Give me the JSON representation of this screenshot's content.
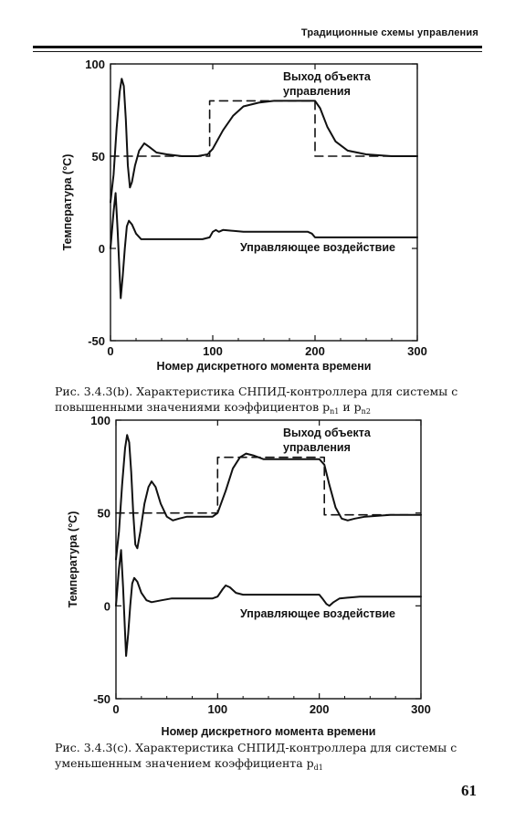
{
  "header": {
    "running_title": "Традиционные схемы управления"
  },
  "page_number": "61",
  "figures": [
    {
      "caption_line1": "Рис. 3.4.3(b). Характеристика СНПИД-контроллера для системы с",
      "caption_line2_prefix": "повышенными значениями коэффициентов p",
      "caption_sub1": "n1",
      "caption_mid": " и p",
      "caption_sub2": "n2",
      "caption_suffix": ""
    },
    {
      "caption_line1": "Рис. 3.4.3(c). Характеристика СНПИД-контроллера для системы с",
      "caption_line2_prefix": "уменьшенным значением коэффициента p",
      "caption_sub1": "d1",
      "caption_mid": "",
      "caption_sub2": "",
      "caption_suffix": ""
    }
  ],
  "chart_data": [
    {
      "type": "line",
      "xlabel": "Номер дискретного момента времени",
      "ylabel": "Температура (°С)",
      "xlim": [
        0,
        300
      ],
      "ylim": [
        -50,
        100
      ],
      "xticks": [
        "0",
        "100",
        "200",
        "300"
      ],
      "yticks": [
        "-50",
        "0",
        "50",
        "100"
      ],
      "grid": false,
      "annotations": [
        "Выход объекта",
        "управления",
        "Управляющее воздействие"
      ],
      "series": [
        {
          "style": "dashed",
          "points": [
            [
              0,
              50
            ],
            [
              97,
              50
            ],
            [
              97,
              80
            ],
            [
              200,
              80
            ],
            [
              200,
              50
            ],
            [
              300,
              50
            ]
          ]
        },
        {
          "style": "solid",
          "points": [
            [
              0,
              25
            ],
            [
              3,
              40
            ],
            [
              6,
              65
            ],
            [
              9,
              85
            ],
            [
              11,
              92
            ],
            [
              13,
              88
            ],
            [
              15,
              70
            ],
            [
              17,
              45
            ],
            [
              19,
              33
            ],
            [
              21,
              36
            ],
            [
              24,
              45
            ],
            [
              28,
              53
            ],
            [
              33,
              57
            ],
            [
              38,
              55
            ],
            [
              45,
              52
            ],
            [
              55,
              51
            ],
            [
              70,
              50
            ],
            [
              85,
              50
            ],
            [
              95,
              51
            ],
            [
              100,
              54
            ],
            [
              110,
              64
            ],
            [
              120,
              72
            ],
            [
              130,
              77
            ],
            [
              145,
              79
            ],
            [
              160,
              80
            ],
            [
              185,
              80
            ],
            [
              200,
              80
            ],
            [
              205,
              76
            ],
            [
              212,
              66
            ],
            [
              220,
              58
            ],
            [
              232,
              53
            ],
            [
              250,
              51
            ],
            [
              275,
              50
            ],
            [
              300,
              50
            ]
          ]
        },
        {
          "style": "solid",
          "points": [
            [
              0,
              0
            ],
            [
              3,
              20
            ],
            [
              5,
              30
            ],
            [
              7,
              10
            ],
            [
              9,
              -15
            ],
            [
              10,
              -27
            ],
            [
              12,
              -15
            ],
            [
              14,
              0
            ],
            [
              16,
              12
            ],
            [
              18,
              15
            ],
            [
              21,
              13
            ],
            [
              25,
              8
            ],
            [
              30,
              5
            ],
            [
              40,
              5
            ],
            [
              60,
              5
            ],
            [
              90,
              5
            ],
            [
              97,
              6
            ],
            [
              100,
              9
            ],
            [
              103,
              10
            ],
            [
              106,
              9
            ],
            [
              110,
              10
            ],
            [
              130,
              9
            ],
            [
              170,
              9
            ],
            [
              193,
              9
            ],
            [
              197,
              8
            ],
            [
              200,
              6
            ],
            [
              210,
              6
            ],
            [
              250,
              6
            ],
            [
              300,
              6
            ]
          ]
        }
      ]
    },
    {
      "type": "line",
      "xlabel": "Номер дискретного момента времени",
      "ylabel": "Температура (°С)",
      "xlim": [
        0,
        300
      ],
      "ylim": [
        -50,
        100
      ],
      "xticks": [
        "0",
        "100",
        "200",
        "300"
      ],
      "yticks": [
        "-50",
        "0",
        "50",
        "100"
      ],
      "grid": false,
      "annotations": [
        "Выход объекта",
        "управления",
        "Управляющее воздействие"
      ],
      "series": [
        {
          "style": "dashed",
          "points": [
            [
              0,
              50
            ],
            [
              100,
              50
            ],
            [
              100,
              80
            ],
            [
              205,
              80
            ],
            [
              205,
              49
            ],
            [
              300,
              49
            ]
          ]
        },
        {
          "style": "solid",
          "points": [
            [
              0,
              25
            ],
            [
              3,
              40
            ],
            [
              6,
              65
            ],
            [
              9,
              85
            ],
            [
              11,
              92
            ],
            [
              13,
              88
            ],
            [
              15,
              72
            ],
            [
              17,
              50
            ],
            [
              19,
              33
            ],
            [
              21,
              31
            ],
            [
              24,
              40
            ],
            [
              28,
              55
            ],
            [
              32,
              64
            ],
            [
              35,
              67
            ],
            [
              39,
              64
            ],
            [
              44,
              55
            ],
            [
              50,
              48
            ],
            [
              56,
              46
            ],
            [
              62,
              47
            ],
            [
              70,
              48
            ],
            [
              85,
              48
            ],
            [
              95,
              48
            ],
            [
              100,
              50
            ],
            [
              108,
              62
            ],
            [
              115,
              74
            ],
            [
              122,
              80
            ],
            [
              128,
              82
            ],
            [
              135,
              81
            ],
            [
              145,
              79
            ],
            [
              165,
              79
            ],
            [
              200,
              79
            ],
            [
              205,
              76
            ],
            [
              210,
              65
            ],
            [
              216,
              53
            ],
            [
              222,
              47
            ],
            [
              228,
              46
            ],
            [
              235,
              47
            ],
            [
              245,
              48
            ],
            [
              270,
              49
            ],
            [
              300,
              49
            ]
          ]
        },
        {
          "style": "solid",
          "points": [
            [
              0,
              0
            ],
            [
              3,
              20
            ],
            [
              5,
              30
            ],
            [
              7,
              10
            ],
            [
              9,
              -15
            ],
            [
              10,
              -27
            ],
            [
              12,
              -15
            ],
            [
              14,
              0
            ],
            [
              16,
              12
            ],
            [
              18,
              15
            ],
            [
              21,
              13
            ],
            [
              25,
              7
            ],
            [
              30,
              3
            ],
            [
              35,
              2
            ],
            [
              45,
              3
            ],
            [
              55,
              4
            ],
            [
              65,
              4
            ],
            [
              80,
              4
            ],
            [
              95,
              4
            ],
            [
              100,
              5
            ],
            [
              105,
              9
            ],
            [
              108,
              11
            ],
            [
              112,
              10
            ],
            [
              118,
              7
            ],
            [
              125,
              6
            ],
            [
              150,
              6
            ],
            [
              180,
              6
            ],
            [
              200,
              6
            ],
            [
              203,
              4
            ],
            [
              207,
              1
            ],
            [
              210,
              0
            ],
            [
              214,
              2
            ],
            [
              220,
              4
            ],
            [
              240,
              5
            ],
            [
              270,
              5
            ],
            [
              300,
              5
            ]
          ]
        }
      ]
    }
  ]
}
